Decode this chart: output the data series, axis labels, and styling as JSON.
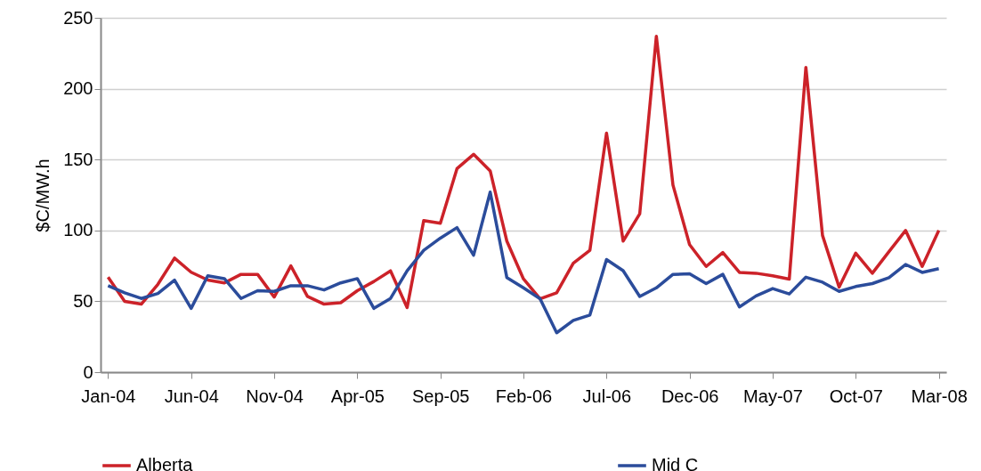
{
  "chart_data": {
    "type": "line",
    "ylabel": "$C/MW.h",
    "categories": [
      "Jan-04",
      null,
      null,
      null,
      null,
      "Jun-04",
      null,
      null,
      null,
      null,
      "Nov-04",
      null,
      null,
      null,
      null,
      "Apr-05",
      null,
      null,
      null,
      null,
      "Sep-05",
      null,
      null,
      null,
      null,
      "Feb-06",
      null,
      null,
      null,
      null,
      "Jul-06",
      null,
      null,
      null,
      null,
      "Dec-06",
      null,
      null,
      null,
      null,
      "May-07",
      null,
      null,
      null,
      null,
      "Oct-07",
      null,
      null,
      null,
      null,
      "Mar-08"
    ],
    "series": [
      {
        "name": "Alberta",
        "color": "#cc2229",
        "values": [
          67,
          50,
          48,
          62,
          80.5,
          70.5,
          65,
          63,
          69,
          69,
          53,
          75,
          53.5,
          48,
          49,
          57.5,
          64,
          71.5,
          45.6,
          107,
          105,
          143.6,
          153.7,
          142,
          92.5,
          65.8,
          51.8,
          56,
          76.8,
          86,
          168.7,
          92.5,
          111.7,
          237,
          132,
          90,
          74.6,
          84.4,
          70.4,
          69.8,
          68,
          65.6,
          215,
          96.5,
          60,
          84,
          69.8,
          85,
          100,
          74.6,
          100
        ]
      },
      {
        "name": "Mid C",
        "color": "#2b4c9b",
        "values": [
          61,
          56,
          52,
          55.5,
          65,
          45,
          68,
          66,
          52,
          57.5,
          57,
          61,
          61,
          58,
          63,
          66,
          45,
          52,
          71.5,
          86,
          94.6,
          102,
          82.5,
          127,
          66.8,
          59.5,
          51.8,
          27.8,
          36.5,
          40.3,
          79.5,
          71.6,
          53.4,
          59.5,
          69,
          69.4,
          62.5,
          69,
          46,
          53.8,
          59,
          55.2,
          67,
          63.5,
          57,
          60.4,
          62.5,
          66.7,
          76,
          70.4,
          73
        ]
      }
    ],
    "ylim": [
      0,
      250
    ],
    "yticks": [
      0,
      50,
      100,
      150,
      200,
      250
    ],
    "grid": "y",
    "legend": "bottom",
    "line_style": "solid"
  }
}
